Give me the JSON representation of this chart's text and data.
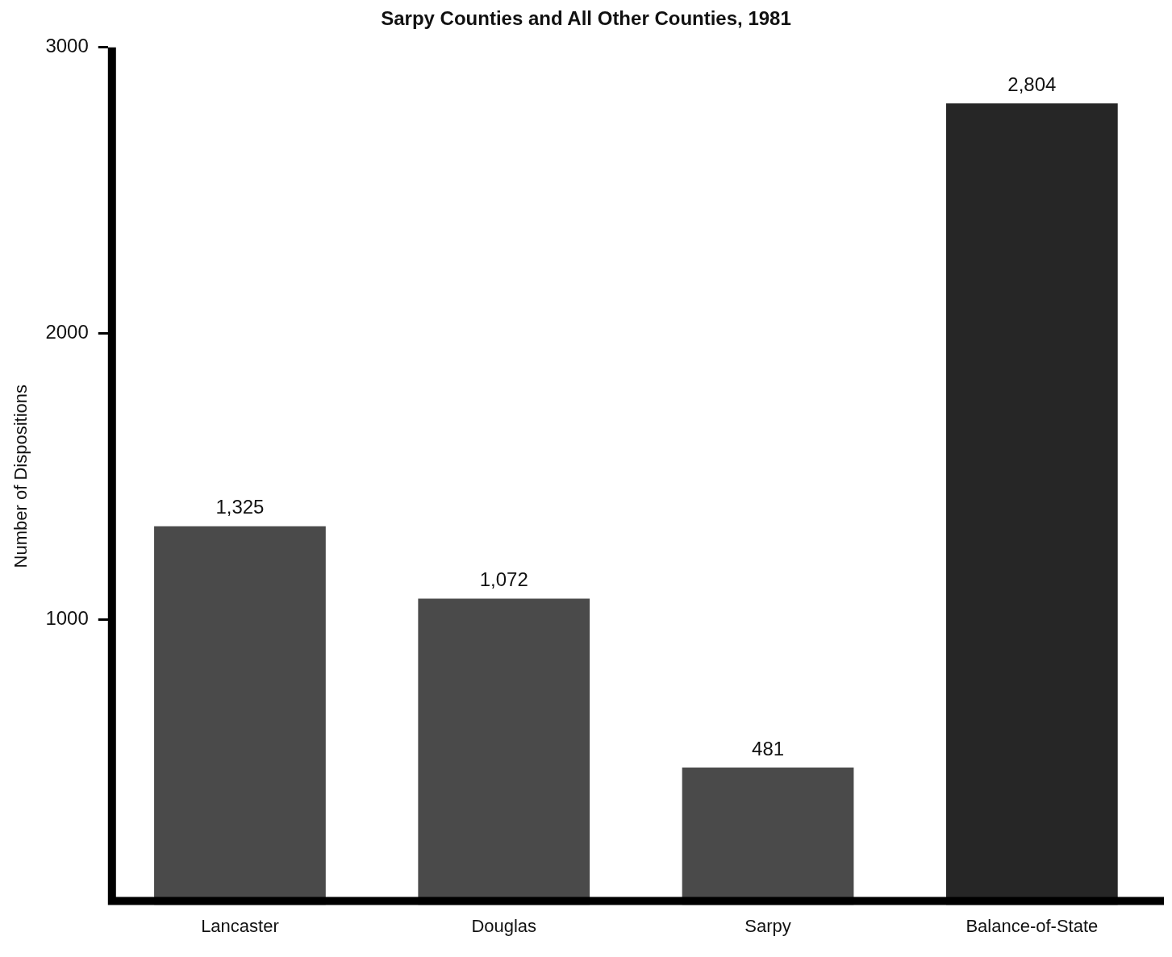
{
  "chart_data": {
    "type": "bar",
    "title": "Sarpy Counties and All Other Counties, 1981",
    "ylabel": "Number of Dispositions",
    "categories": [
      "Lancaster",
      "Douglas",
      "Sarpy",
      "Balance-of-State"
    ],
    "values": [
      1325,
      1072,
      481,
      2804
    ],
    "colors": [
      "#4a4a4a",
      "#4a4a4a",
      "#4a4a4a",
      "#262626"
    ],
    "value_labels": [
      "1,325",
      "1,072",
      "481",
      "2,804"
    ],
    "ylim": [
      0,
      3000
    ],
    "yticks": [
      1000,
      2000,
      3000
    ],
    "grid": false,
    "legend": false
  }
}
